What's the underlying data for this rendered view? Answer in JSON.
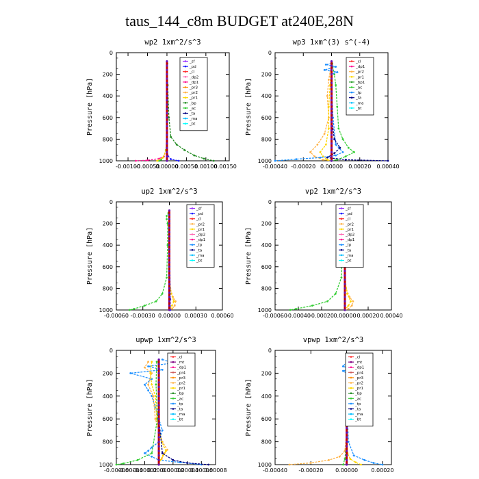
{
  "page": {
    "title": "taus_144_c8m  BUDGET at240E,28N"
  },
  "colors": {
    "sf": "#9b30ff",
    "pd": "#1e1eff",
    "cl": "#ff2a2a",
    "dp2": "#ff69b4",
    "dp1": "#ff1493",
    "pr3": "#ff8c00",
    "pr2": "#ffb347",
    "pr1": "#ffd700",
    "bp": "#228b22",
    "ac": "#32cd32",
    "tp": "#1e90ff",
    "ta": "#000080",
    "ma": "#00bfff",
    "bt": "#00ffff",
    "mt": "#800080",
    "pr4": "#cd5c5c",
    "bp1": "#2ca02c",
    "thick": "#c00000"
  },
  "chart_data": [
    {
      "type": "line",
      "title": "wp2  1xm^2/s^3",
      "ylabel": "Pressure [hPa]",
      "xlim": [
        -0.0013,
        0.0016
      ],
      "ylim": [
        1000,
        0
      ],
      "xticks": [
        -0.001,
        -0.0005,
        0,
        0.0005,
        0.001,
        0.0015
      ],
      "xtick_labels": [
        "-0.00100",
        "-0.00050",
        "0.00000",
        "0.00050",
        "0.00100",
        "0.00150"
      ],
      "yticks": [
        0,
        200,
        400,
        600,
        800,
        1000
      ],
      "legend": [
        "_sf",
        "_pd",
        "_cl",
        "_dp2",
        "_dp1",
        "_pr3",
        "_pr2",
        "_pr1",
        "_bp",
        "_ac",
        "_ta",
        "_ma",
        "_bt"
      ],
      "series": [
        {
          "name": "_bp",
          "color": "bp",
          "y": [
            100,
            300,
            600,
            780,
            850,
            900,
            950,
            980,
            1000
          ],
          "x": [
            1e-05,
            2e-05,
            5e-05,
            0.0001,
            0.00025,
            0.00045,
            0.0007,
            0.00095,
            0.0012
          ]
        },
        {
          "name": "_ac",
          "color": "ac",
          "y": [
            100,
            500,
            800,
            900,
            960,
            990,
            1000
          ],
          "x": [
            0,
            0,
            0,
            -3e-05,
            -8e-05,
            -0.00015,
            -0.0002
          ]
        },
        {
          "name": "_dp1",
          "color": "dp1",
          "y": [
            100,
            600,
            900,
            960,
            980,
            995,
            1000
          ],
          "x": [
            0,
            0,
            -2e-05,
            -8e-05,
            -0.0002,
            -0.0005,
            -0.0008
          ]
        },
        {
          "name": "_pd",
          "color": "pd",
          "y": [
            100,
            800,
            950,
            985,
            1000
          ],
          "x": [
            0,
            0,
            2e-05,
            0.0001,
            0.0003
          ]
        },
        {
          "name": "_pr1",
          "color": "pr1",
          "y": [
            100,
            700,
            900,
            970,
            1000
          ],
          "x": [
            0,
            0,
            -2e-05,
            -0.0001,
            -0.00025
          ]
        },
        {
          "name": "_sf",
          "color": "thick",
          "y": [
            80,
            1000
          ],
          "x": [
            0,
            0
          ]
        }
      ]
    },
    {
      "type": "line",
      "title": "wp3  1xm^(3) s^(-4)",
      "ylabel": "Pressure [hPa]",
      "xlim": [
        -0.0004,
        0.0004
      ],
      "ylim": [
        1000,
        0
      ],
      "xticks": [
        -0.0004,
        -0.0002,
        0,
        0.0002,
        0.0004
      ],
      "xtick_labels": [
        "-0.00040",
        "-0.00020",
        "0.00000",
        "0.00020",
        "0.00040"
      ],
      "yticks": [
        0,
        200,
        400,
        600,
        800,
        1000
      ],
      "legend": [
        "_cl",
        "_dp1",
        "_pr2",
        "_pr1",
        "_bp1",
        "_ac",
        "_tp",
        "_ta",
        "_ma",
        "_bt"
      ],
      "series": [
        {
          "name": "_ac",
          "color": "ac",
          "y": [
            100,
            200,
            300,
            500,
            700,
            800,
            880,
            920,
            960,
            990,
            1000
          ],
          "x": [
            5e-06,
            2e-05,
            3e-05,
            4e-05,
            5e-05,
            8e-05,
            0.00012,
            0.00016,
            0.0001,
            4e-05,
            0
          ]
        },
        {
          "name": "_pr2",
          "color": "pr2",
          "y": [
            100,
            250,
            400,
            600,
            750,
            850,
            920,
            960,
            990,
            1000
          ],
          "x": [
            0,
            -2e-05,
            -3e-05,
            -2e-05,
            -5e-05,
            -0.0001,
            -0.00015,
            -0.00012,
            -6e-05,
            0
          ]
        },
        {
          "name": "_pr1",
          "color": "pr1",
          "y": [
            100,
            300,
            500,
            700,
            850,
            920,
            960,
            990,
            1000
          ],
          "x": [
            0,
            -1e-05,
            -2e-05,
            -2e-05,
            -4e-05,
            -8e-05,
            -6e-05,
            -3e-05,
            0
          ]
        },
        {
          "name": "_tp",
          "color": "tp",
          "y": [
            100,
            110,
            130,
            160,
            180,
            200,
            300,
            600,
            850,
            920,
            950,
            970,
            985,
            1000
          ],
          "x": [
            0,
            -4e-05,
            3e-05,
            -5e-05,
            4e-05,
            0,
            0,
            1e-05,
            3e-05,
            8e-05,
            3e-05,
            -8e-05,
            -0.00025,
            -0.0004
          ]
        },
        {
          "name": "_ta",
          "color": "ta",
          "y": [
            100,
            600,
            800,
            880,
            930,
            970,
            990,
            1000
          ],
          "x": [
            0,
            0,
            2e-05,
            6e-05,
            2e-05,
            -3e-05,
            0.0001,
            0.0004
          ]
        },
        {
          "name": "_cl",
          "color": "thick",
          "y": [
            80,
            1000
          ],
          "x": [
            0,
            0
          ]
        }
      ]
    },
    {
      "type": "line",
      "title": "up2  1xm^2/s^3",
      "ylabel": "Pressure [hPa]",
      "xlim": [
        -0.0006,
        0.0006
      ],
      "ylim": [
        1000,
        0
      ],
      "xticks": [
        -0.0006,
        -0.0003,
        0,
        0.0003,
        0.0006
      ],
      "xtick_labels": [
        "-0.00060",
        "-0.00030",
        "0.00000",
        "0.00030",
        "0.00060"
      ],
      "yticks": [
        0,
        200,
        400,
        600,
        800,
        1000
      ],
      "legend": [
        "_sf",
        "_pd",
        "_cl",
        "_pr2",
        "_pr1",
        "_dp2",
        "_dp1",
        "_tp",
        "_ta",
        "_ma",
        "_bt"
      ],
      "series": [
        {
          "name": "_dp2",
          "color": "ac",
          "y": [
            100,
            130,
            160,
            200,
            400,
            700,
            850,
            920,
            960,
            990,
            1000
          ],
          "x": [
            -1e-05,
            -3e-05,
            -3e-05,
            -2e-05,
            -2e-05,
            -3e-05,
            -8e-05,
            -0.00015,
            -0.00028,
            -0.0004,
            -0.00045
          ]
        },
        {
          "name": "_pr2",
          "color": "pr2",
          "y": [
            100,
            600,
            800,
            880,
            920,
            960,
            990,
            1000
          ],
          "x": [
            0,
            0,
            1e-05,
            4e-05,
            7e-05,
            6e-05,
            3e-05,
            0
          ]
        },
        {
          "name": "_pr1",
          "color": "pr1",
          "y": [
            100,
            700,
            850,
            920,
            960,
            1000
          ],
          "x": [
            0,
            0,
            2e-05,
            5e-05,
            3e-05,
            0
          ]
        },
        {
          "name": "_pd",
          "color": "pd",
          "y": [
            100,
            900,
            1000
          ],
          "x": [
            0,
            1e-05,
            1e-05
          ]
        },
        {
          "name": "_cl",
          "color": "thick",
          "y": [
            80,
            1000
          ],
          "x": [
            0,
            0
          ]
        }
      ]
    },
    {
      "type": "line",
      "title": "vp2  1xm^2/s^3",
      "ylabel": "Pressure [hPa]",
      "xlim": [
        -0.0006,
        0.0004
      ],
      "ylim": [
        1000,
        0
      ],
      "xticks": [
        -0.0006,
        -0.0004,
        -0.0002,
        0,
        0.0002,
        0.0004
      ],
      "xtick_labels": [
        "-0.00060",
        "-0.00040",
        "-0.00020",
        "0.00000",
        "0.00020",
        "0.00040"
      ],
      "yticks": [
        0,
        200,
        400,
        600,
        800,
        1000
      ],
      "legend": [
        "_sf",
        "_pd",
        "_cl",
        "_pr2",
        "_pr1",
        "_dp2",
        "_dp1",
        "_tp",
        "_ta",
        "_ma",
        "_bt"
      ],
      "series": [
        {
          "name": "_dp2",
          "color": "ac",
          "y": [
            100,
            130,
            160,
            200,
            400,
            700,
            850,
            920,
            960,
            990,
            1000
          ],
          "x": [
            -1e-05,
            -3e-05,
            -3e-05,
            -2e-05,
            -2e-05,
            -3e-05,
            -8e-05,
            -0.00015,
            -0.00028,
            -0.00042,
            -0.00047
          ]
        },
        {
          "name": "_pr2",
          "color": "pr2",
          "y": [
            100,
            600,
            800,
            880,
            920,
            960,
            990,
            1000
          ],
          "x": [
            0,
            0,
            1e-05,
            4e-05,
            7e-05,
            6e-05,
            3e-05,
            0
          ]
        },
        {
          "name": "_pr1",
          "color": "pr1",
          "y": [
            100,
            700,
            850,
            920,
            960,
            1000
          ],
          "x": [
            0,
            0,
            2e-05,
            5e-05,
            3e-05,
            0
          ]
        },
        {
          "name": "_cl",
          "color": "thick",
          "y": [
            80,
            1000
          ],
          "x": [
            0,
            0
          ]
        }
      ]
    },
    {
      "type": "line",
      "title": "upwp  1xm^2/s^3",
      "ylabel": "Pressure [hPa]",
      "xlim": [
        -6e-05,
        8e-05
      ],
      "ylim": [
        1000,
        0
      ],
      "xticks": [
        -6e-05,
        -4e-05,
        -2e-05,
        0,
        2e-05,
        4e-05,
        6e-05,
        8e-05
      ],
      "xtick_labels": [
        "-0.00006",
        "-0.00004",
        "-0.00002",
        "0.00000",
        "0.00002",
        "0.00004",
        "0.00006",
        "0.00008"
      ],
      "yticks": [
        0,
        200,
        400,
        600,
        800,
        1000
      ],
      "legend": [
        "_cl",
        "_mt",
        "_dp1",
        "_pr4",
        "_pr3",
        "_pr2",
        "_pr1",
        "_bp",
        "_ac",
        "_tp",
        "_ta",
        "_ma",
        "_bt"
      ],
      "series": [
        {
          "name": "_tp",
          "color": "tp",
          "y": [
            80,
            110,
            140,
            170,
            200,
            250,
            300,
            350,
            400,
            500,
            600,
            700,
            800,
            850,
            880,
            900,
            930,
            960,
            980,
            1000
          ],
          "x": [
            5e-06,
            2e-05,
            -1.5e-05,
            5e-06,
            -4e-05,
            -1e-05,
            -2e-05,
            -1.5e-05,
            -1e-05,
            -5e-06,
            0,
            5e-06,
            0,
            -1e-05,
            -1.5e-05,
            -2e-05,
            -1e-05,
            0,
            3e-05,
            6e-05
          ]
        },
        {
          "name": "_pr2",
          "color": "pr2",
          "y": [
            100,
            150,
            200,
            300,
            400,
            600,
            800,
            870,
            900,
            950,
            980,
            1000
          ],
          "x": [
            -1.5e-05,
            -2e-05,
            -1e-05,
            -1.5e-05,
            -8e-06,
            -5e-06,
            5e-06,
            1.2e-05,
            8e-06,
            4e-06,
            0,
            0
          ]
        },
        {
          "name": "_pr1",
          "color": "pr1",
          "y": [
            100,
            200,
            300,
            400,
            600,
            800,
            880,
            920,
            960,
            1000
          ],
          "x": [
            -1e-05,
            -1.2e-05,
            -1e-05,
            -5e-06,
            -3e-06,
            4e-06,
            1e-05,
            6e-06,
            2e-06,
            0
          ]
        },
        {
          "name": "_ac",
          "color": "ac",
          "y": [
            100,
            300,
            600,
            900,
            960,
            990,
            1000
          ],
          "x": [
            -3e-06,
            -4e-06,
            -2e-06,
            -1e-05,
            -3e-05,
            -5e-05,
            -6e-05
          ]
        },
        {
          "name": "_ta",
          "color": "ta",
          "y": [
            100,
            600,
            900,
            960,
            985,
            1000
          ],
          "x": [
            0,
            0,
            5e-06,
            2e-05,
            4e-05,
            7e-05
          ]
        },
        {
          "name": "_cl",
          "color": "thick",
          "y": [
            80,
            1000
          ],
          "x": [
            0,
            0
          ]
        }
      ]
    },
    {
      "type": "line",
      "title": "vpwp  1xm^2/s^3",
      "ylabel": "Pressure [hPa]",
      "xlim": [
        -0.0004,
        0.00025
      ],
      "ylim": [
        1000,
        0
      ],
      "xticks": [
        -0.0004,
        -0.0002,
        0,
        0.0002
      ],
      "xtick_labels": [
        "-0.00040",
        "-0.00020",
        "0.00000",
        "0.00020"
      ],
      "yticks": [
        0,
        200,
        400,
        600,
        800,
        1000
      ],
      "legend": [
        "_cl",
        "_mt",
        "_dp1",
        "_pr4",
        "_pr3",
        "_pr2",
        "_pr1",
        "_bp",
        "_ac",
        "_tp",
        "_ta",
        "_ma",
        "_bt"
      ],
      "series": [
        {
          "name": "_tp",
          "color": "tp",
          "y": [
            100,
            140,
            160,
            180,
            200,
            400,
            800,
            920,
            960,
            985,
            1000
          ],
          "x": [
            0,
            -2e-05,
            2e-05,
            -2e-05,
            0,
            0,
            1e-05,
            4e-05,
            0.0001,
            0.00015,
            0.0002
          ]
        },
        {
          "name": "_pr2",
          "color": "pr2",
          "y": [
            100,
            700,
            880,
            930,
            960,
            985,
            1000
          ],
          "x": [
            0,
            0,
            -1e-05,
            -4e-05,
            -0.0001,
            -0.0002,
            -0.00032
          ]
        },
        {
          "name": "_pr1",
          "color": "pr1",
          "y": [
            100,
            700,
            900,
            950,
            980,
            1000
          ],
          "x": [
            0,
            0,
            5e-06,
            2e-05,
            5e-05,
            8e-05
          ]
        },
        {
          "name": "_ac",
          "color": "ac",
          "y": [
            100,
            800,
            950,
            1000
          ],
          "x": [
            0,
            0,
            -1e-05,
            -2e-05
          ]
        },
        {
          "name": "_cl",
          "color": "thick",
          "y": [
            80,
            1000
          ],
          "x": [
            0,
            0
          ]
        }
      ]
    }
  ]
}
